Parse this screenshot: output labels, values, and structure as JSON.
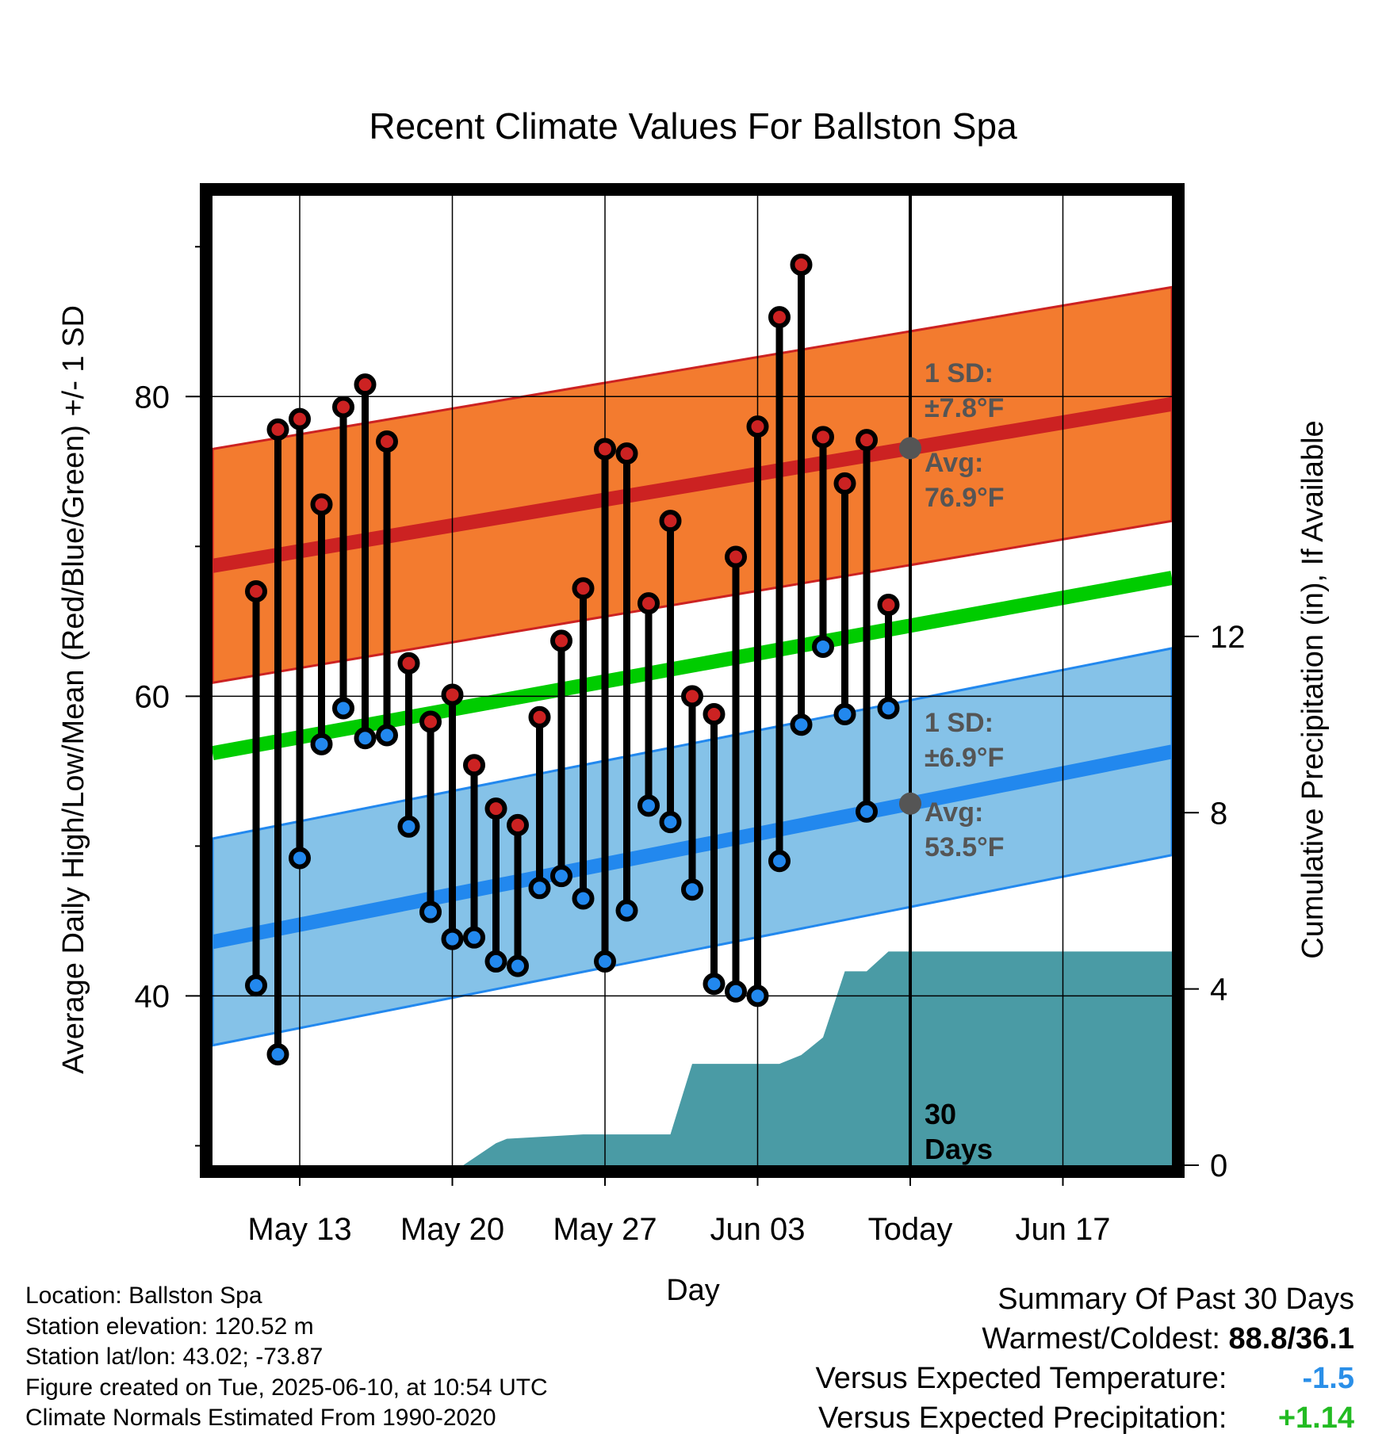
{
  "chart_data": {
    "type": "line",
    "title": "Recent Climate Values For Ballston Spa",
    "xlabel": "Day",
    "ylabel": "Average Daily High/Low/Mean (Red/Blue/Green) +/- 1 SD",
    "y2label": "Cumulative Precipitation (in), If Available",
    "ylim": [
      28.7,
      93.4
    ],
    "y_ticks": [
      40,
      60,
      80
    ],
    "y2lim": [
      0,
      22
    ],
    "y2_ticks": [
      0,
      4,
      8,
      12
    ],
    "x_range": [
      "2025-05-09",
      "2025-06-22"
    ],
    "x_ticks": [
      {
        "date": "2025-05-13",
        "label": "May 13"
      },
      {
        "date": "2025-05-20",
        "label": "May 20"
      },
      {
        "date": "2025-05-27",
        "label": "May 27"
      },
      {
        "date": "2025-06-03",
        "label": "Jun 03"
      },
      {
        "date": "2025-06-10",
        "label": "Today"
      },
      {
        "date": "2025-06-17",
        "label": "Jun 17"
      }
    ],
    "grid": true,
    "dates": [
      "2025-05-11",
      "2025-05-12",
      "2025-05-13",
      "2025-05-14",
      "2025-05-15",
      "2025-05-16",
      "2025-05-17",
      "2025-05-18",
      "2025-05-19",
      "2025-05-20",
      "2025-05-21",
      "2025-05-22",
      "2025-05-23",
      "2025-05-24",
      "2025-05-25",
      "2025-05-26",
      "2025-05-27",
      "2025-05-28",
      "2025-05-29",
      "2025-05-30",
      "2025-05-31",
      "2025-06-01",
      "2025-06-02",
      "2025-06-03",
      "2025-06-04",
      "2025-06-05",
      "2025-06-06",
      "2025-06-07",
      "2025-06-08",
      "2025-06-09"
    ],
    "series": [
      {
        "name": "High",
        "color": "#cc2222",
        "values": [
          67.0,
          77.8,
          78.5,
          72.8,
          79.3,
          80.8,
          77.0,
          62.2,
          58.3,
          60.1,
          55.4,
          52.5,
          51.4,
          58.6,
          63.7,
          67.2,
          76.5,
          76.2,
          66.2,
          71.7,
          60.0,
          58.8,
          69.3,
          78.0,
          85.3,
          88.8,
          77.3,
          74.2,
          77.1,
          66.1
        ]
      },
      {
        "name": "Low",
        "color": "#2288ee",
        "values": [
          40.7,
          36.1,
          49.2,
          56.8,
          59.2,
          57.2,
          57.4,
          51.3,
          45.6,
          43.8,
          43.9,
          42.3,
          42.0,
          47.2,
          48.0,
          46.5,
          42.3,
          45.7,
          52.7,
          51.6,
          47.1,
          40.8,
          40.3,
          40.0,
          49.0,
          58.1,
          63.3,
          58.8,
          52.3,
          59.2
        ]
      }
    ],
    "normals": {
      "high_avg": {
        "color": "#cc2222",
        "start": 68.7,
        "end": 79.5
      },
      "high_band": {
        "color": "#f37b2f",
        "sd": 7.8
      },
      "low_avg": {
        "color": "#2288ee",
        "start": 43.6,
        "end": 56.3
      },
      "low_band": {
        "color": "#85c2e8",
        "sd": 6.9
      },
      "mean_avg": {
        "color": "#00cc00",
        "start": 56.2,
        "end": 67.9
      }
    },
    "precip": {
      "color": "#4a9ba5",
      "dates": [
        "2025-05-20.5",
        "2025-05-22",
        "2025-05-22.5",
        "2025-05-26",
        "2025-05-30",
        "2025-05-31",
        "2025-06-04",
        "2025-06-05",
        "2025-06-06",
        "2025-06-07",
        "2025-06-08",
        "2025-06-09",
        "2025-06-22"
      ],
      "values": [
        0,
        0.5,
        0.6,
        0.7,
        0.7,
        2.3,
        2.3,
        2.5,
        2.9,
        4.4,
        4.4,
        4.85,
        4.85
      ]
    },
    "annotations": {
      "high_sd": "1 SD:",
      "high_sd_val": "±7.8°F",
      "high_avg_label": "Avg:",
      "high_avg_val": "76.9°F",
      "low_sd": "1 SD:",
      "low_sd_val": "±6.9°F",
      "low_avg_label": "Avg:",
      "low_avg_val": "53.5°F",
      "days_line1": "30",
      "days_line2": "Days"
    }
  },
  "footer": {
    "location": "Location: Ballston Spa",
    "elevation": "Station elevation: 120.52 m",
    "latlon": "Station lat/lon: 43.02; -73.87",
    "created": "Figure created on Tue, 2025-06-10, at 10:54 UTC",
    "normals": "Climate Normals Estimated From 1990-2020"
  },
  "summary": {
    "title": "Summary Of Past 30 Days",
    "warm_cold_label": "Warmest/Coldest:",
    "warm_cold_value": "88.8/36.1",
    "temp_label": "Versus Expected Temperature:",
    "temp_value": "-1.5",
    "temp_color": "#2a8fe8",
    "precip_label": "Versus Expected Precipitation:",
    "precip_value": "+1.14",
    "precip_color": "#22bb22"
  }
}
